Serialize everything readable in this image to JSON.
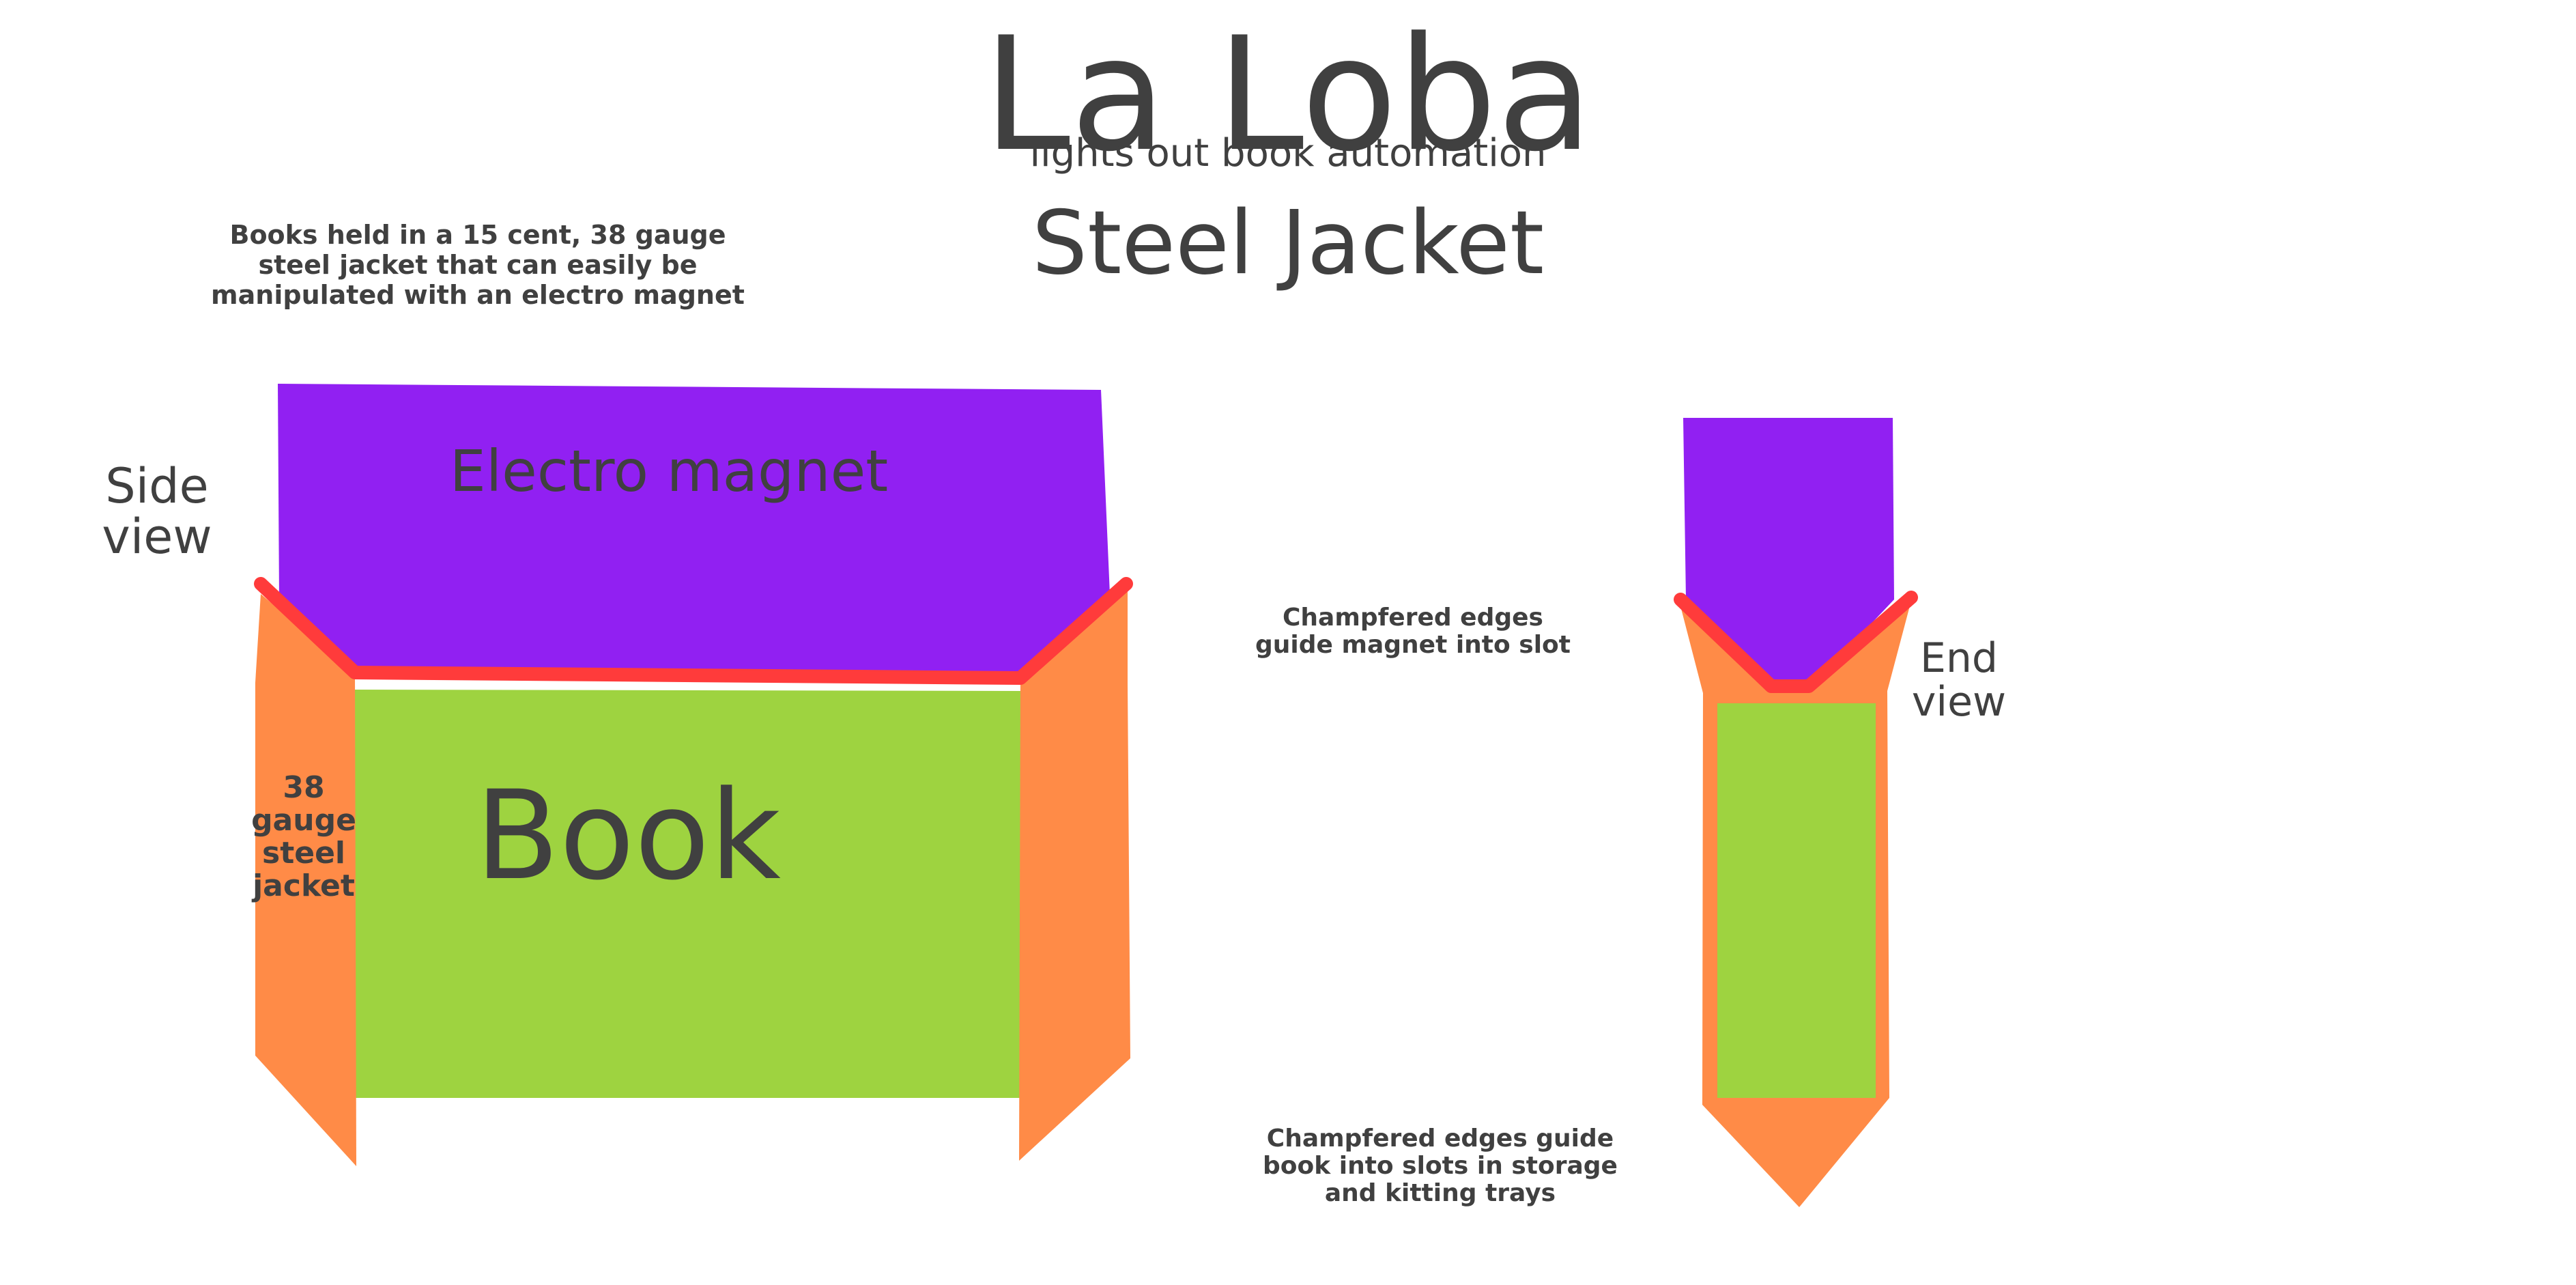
{
  "title": "La Loba",
  "subtitle": "lights out book automation",
  "heading": "Steel Jacket",
  "intro_note": "Books held in a 15 cent, 38 gauge\nsteel jacket that can easily be\nmanipulated with an electro magnet",
  "side_view_label": "Side\nview",
  "end_view_label": "End\nview",
  "magnet_label": "Electro magnet",
  "book_label": "Book",
  "jacket_label": "38\ngauge\nsteel\njacket",
  "chamfer_note_magnet": "Champfered edges\nguide magnet into slot",
  "chamfer_note_book": "Champfered edges guide\nbook into slots in storage\nand kitting trays",
  "colors": {
    "magnet": "#9120f2",
    "book": "#9ed340",
    "jacket": "#ff8b47",
    "chamfer_edge": "#ff3b3b",
    "text": "#404040"
  }
}
